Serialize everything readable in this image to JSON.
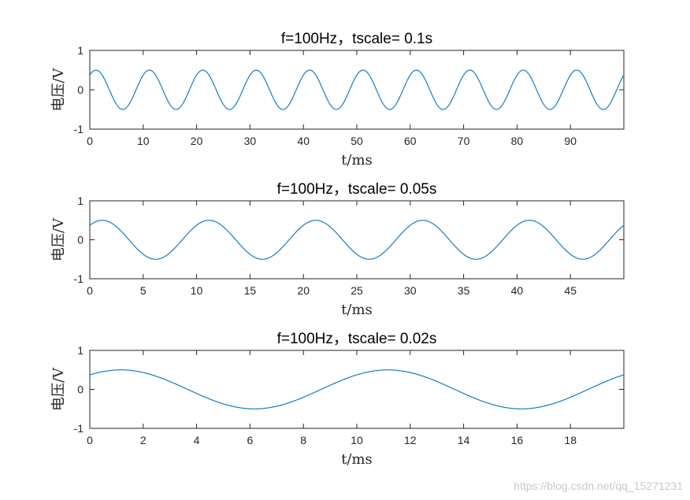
{
  "figure": {
    "watermark": "https://blog.csdn.net/qq_15271231"
  },
  "chart_data": [
    {
      "type": "line",
      "title": "f=100Hz，tscale= 0.1s",
      "xlabel": "t/ms",
      "ylabel": "电压/V",
      "xlim": [
        0,
        100
      ],
      "ylim": [
        -1,
        1
      ],
      "xticks": [
        0,
        10,
        20,
        30,
        40,
        50,
        60,
        70,
        80,
        90
      ],
      "yticks": [
        -1,
        0,
        1
      ],
      "grid": false,
      "series": [
        {
          "function": "0.5*sin(2*pi*100*t + 0.84)",
          "x_units": "ms",
          "frequency_hz": 100,
          "amplitude": 0.5,
          "phase_rad": 0.84,
          "color": "#0072bd"
        }
      ]
    },
    {
      "type": "line",
      "title": "f=100Hz，tscale= 0.05s",
      "xlabel": "t/ms",
      "ylabel": "电压/V",
      "xlim": [
        0,
        50
      ],
      "ylim": [
        -1,
        1
      ],
      "xticks": [
        0,
        5,
        10,
        15,
        20,
        25,
        30,
        35,
        40,
        45
      ],
      "yticks": [
        -1,
        0,
        1
      ],
      "grid": false,
      "series": [
        {
          "function": "0.5*sin(2*pi*100*t + 0.84)",
          "x_units": "ms",
          "frequency_hz": 100,
          "amplitude": 0.5,
          "phase_rad": 0.84,
          "color": "#0072bd"
        }
      ]
    },
    {
      "type": "line",
      "title": "f=100Hz，tscale= 0.02s",
      "xlabel": "t/ms",
      "ylabel": "电压/V",
      "xlim": [
        0,
        20
      ],
      "ylim": [
        -1,
        1
      ],
      "xticks": [
        0,
        2,
        4,
        6,
        8,
        10,
        12,
        14,
        16,
        18
      ],
      "yticks": [
        -1,
        0,
        1
      ],
      "grid": false,
      "series": [
        {
          "function": "0.5*sin(2*pi*100*t + 0.84)",
          "x_units": "ms",
          "frequency_hz": 100,
          "amplitude": 0.5,
          "phase_rad": 0.84,
          "color": "#0072bd"
        }
      ]
    }
  ]
}
